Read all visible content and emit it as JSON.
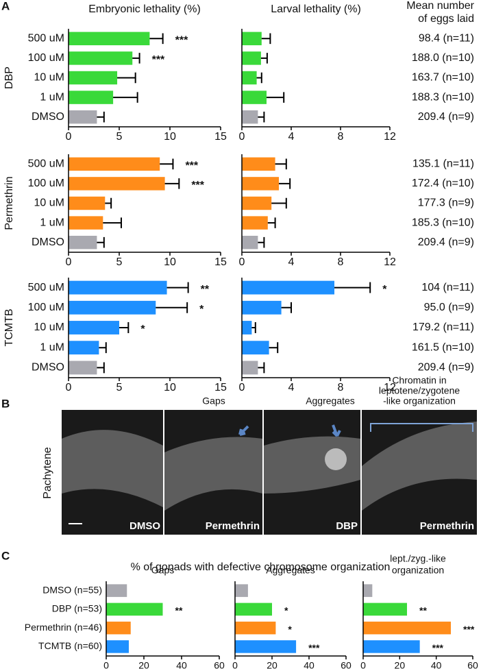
{
  "chart_data": [
    {
      "type": "bar",
      "orientation": "horizontal",
      "title": "Embryonic lethality (%)",
      "group": "DBP",
      "categories": [
        "500 uM",
        "100 uM",
        "10 uM",
        "1 uM",
        "DMSO"
      ],
      "values": [
        8.0,
        6.3,
        4.8,
        4.4,
        2.8
      ],
      "errors": [
        1.3,
        0.7,
        1.8,
        2.4,
        0.7
      ],
      "colors": [
        "#3ad93a",
        "#3ad93a",
        "#3ad93a",
        "#3ad93a",
        "#a9a9b0"
      ],
      "annotations": [
        "***",
        "***",
        null,
        null,
        null
      ],
      "xlim": [
        0,
        15
      ],
      "xticks": [
        0,
        5,
        10,
        15
      ]
    },
    {
      "type": "bar",
      "orientation": "horizontal",
      "title": "Larval lethality (%)",
      "values": [
        1.6,
        1.55,
        1.2,
        2.0,
        1.3
      ],
      "errors": [
        0.7,
        0.5,
        0.4,
        1.4,
        0.5
      ],
      "colors": [
        "#3ad93a",
        "#3ad93a",
        "#3ad93a",
        "#3ad93a",
        "#a9a9b0"
      ],
      "xlim": [
        0,
        12
      ],
      "xticks": [
        0,
        4,
        8,
        12
      ]
    },
    {
      "type": "bar",
      "orientation": "horizontal",
      "group": "Permethrin",
      "categories": [
        "500 uM",
        "100 uM",
        "10 uM",
        "1 uM",
        "DMSO"
      ],
      "values": [
        9.0,
        9.5,
        3.6,
        3.4,
        2.8
      ],
      "errors": [
        1.3,
        1.4,
        0.6,
        1.8,
        0.7
      ],
      "colors": [
        "#ff8c1a",
        "#ff8c1a",
        "#ff8c1a",
        "#ff8c1a",
        "#a9a9b0"
      ],
      "annotations": [
        "***",
        "***",
        null,
        null,
        null
      ],
      "xlim": [
        0,
        15
      ],
      "xticks": [
        0,
        5,
        10,
        15
      ]
    },
    {
      "type": "bar",
      "orientation": "horizontal",
      "values": [
        2.7,
        3.0,
        2.4,
        2.1,
        1.3
      ],
      "errors": [
        0.9,
        0.9,
        1.2,
        0.6,
        0.5
      ],
      "colors": [
        "#ff8c1a",
        "#ff8c1a",
        "#ff8c1a",
        "#ff8c1a",
        "#a9a9b0"
      ],
      "xlim": [
        0,
        12
      ],
      "xticks": [
        0,
        4,
        8,
        12
      ]
    },
    {
      "type": "bar",
      "orientation": "horizontal",
      "group": "TCMTB",
      "categories": [
        "500 uM",
        "100 uM",
        "10 uM",
        "1 uM",
        "DMSO"
      ],
      "values": [
        9.7,
        8.6,
        5.0,
        3.0,
        2.8
      ],
      "errors": [
        2.1,
        3.1,
        0.9,
        0.7,
        0.7
      ],
      "colors": [
        "#1e90ff",
        "#1e90ff",
        "#1e90ff",
        "#1e90ff",
        "#a9a9b0"
      ],
      "annotations": [
        "**",
        "*",
        "*",
        null,
        null
      ],
      "xlim": [
        0,
        15
      ],
      "xticks": [
        0,
        5,
        10,
        15
      ]
    },
    {
      "type": "bar",
      "orientation": "horizontal",
      "values": [
        7.5,
        3.2,
        0.8,
        2.2,
        1.3
      ],
      "errors": [
        2.9,
        0.8,
        0.3,
        0.7,
        0.5
      ],
      "colors": [
        "#1e90ff",
        "#1e90ff",
        "#1e90ff",
        "#1e90ff",
        "#a9a9b0"
      ],
      "annotations": [
        "*",
        null,
        null,
        null,
        null
      ],
      "xlim": [
        0,
        12
      ],
      "xticks": [
        0,
        4,
        8,
        12
      ]
    },
    {
      "type": "bar",
      "orientation": "horizontal",
      "title": [
        "Gaps"
      ],
      "categories": [
        "DMSO (n=55)",
        "DBP (n=53)",
        "Permethrin (n=46)",
        "TCMTB (n=60)"
      ],
      "values": [
        11,
        30,
        13,
        12
      ],
      "colors": [
        "#a9a9b0",
        "#3ad93a",
        "#ff8c1a",
        "#1e90ff"
      ],
      "annotations": [
        null,
        "**",
        null,
        null
      ],
      "xlim": [
        0,
        60
      ],
      "xticks": [
        0,
        20,
        40,
        60
      ]
    },
    {
      "type": "bar",
      "orientation": "horizontal",
      "title": [
        "Aggregates"
      ],
      "values": [
        7,
        20,
        22,
        33
      ],
      "colors": [
        "#a9a9b0",
        "#3ad93a",
        "#ff8c1a",
        "#1e90ff"
      ],
      "annotations": [
        null,
        "*",
        "*",
        "***"
      ],
      "xlim": [
        0,
        60
      ],
      "xticks": [
        0,
        20,
        40,
        60
      ]
    },
    {
      "type": "bar",
      "orientation": "horizontal",
      "title": [
        "lept./zyg.-like",
        "organization"
      ],
      "values": [
        5,
        24,
        48,
        31
      ],
      "colors": [
        "#a9a9b0",
        "#3ad93a",
        "#ff8c1a",
        "#1e90ff"
      ],
      "annotations": [
        null,
        "**",
        "***",
        "***"
      ],
      "xlim": [
        0,
        60
      ],
      "xticks": [
        0,
        20,
        40,
        60
      ]
    }
  ],
  "eggs_laid": {
    "title": [
      "Mean number",
      "of eggs laid"
    ],
    "rows": [
      [
        "98.4 (n=11)",
        "188.0 (n=10)",
        "163.7 (n=10)",
        "188.3 (n=10)",
        "209.4 (n=9)"
      ],
      [
        "135.1 (n=11)",
        "172.4 (n=10)",
        "177.3 (n=9)",
        "185.3 (n=10)",
        "209.4 (n=9)"
      ],
      [
        "104 (n=11)",
        "95.0 (n=9)",
        "179.2 (n=11)",
        "161.5 (n=10)",
        "209.4 (n=9)"
      ]
    ]
  },
  "panels": [
    "A",
    "B",
    "C"
  ],
  "images": {
    "ylabel": "Pachytene",
    "headers": [
      [
        "Gaps"
      ],
      [
        "Aggregates"
      ],
      [
        "Chromatin in",
        "leptotene/zygotene",
        "-like organization"
      ]
    ],
    "labels": [
      "DMSO",
      "Permethrin",
      "DBP",
      "Permethrin"
    ]
  },
  "panel_c_title": "% of gonads with defective chromosome organization"
}
